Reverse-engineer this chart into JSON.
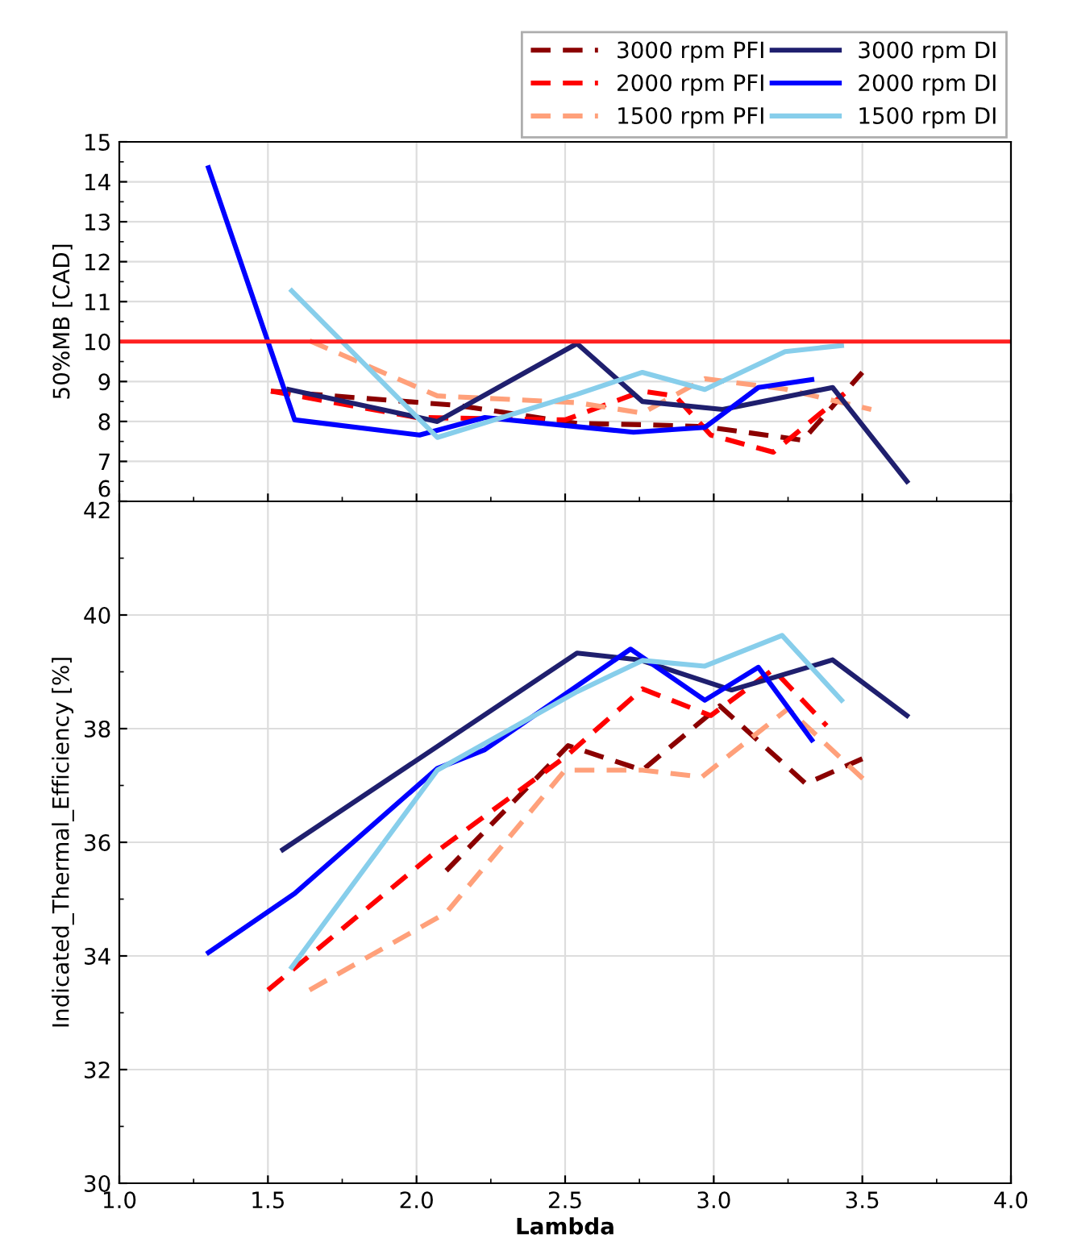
{
  "chart_data": [
    {
      "type": "line",
      "ylabel": "50%MB [CAD]",
      "xlim": [
        1.0,
        4.0
      ],
      "xticks": [
        1.0,
        1.5,
        2.0,
        2.5,
        3.0,
        3.5,
        4.0
      ],
      "ylim": [
        6,
        15
      ],
      "yticks": [
        6,
        7,
        8,
        9,
        10,
        11,
        12,
        13,
        14,
        15
      ],
      "tick_labels": "y",
      "grid": true,
      "legend": "top right",
      "line_style": "solid",
      "marker": "none",
      "ref_lines": [
        {
          "axis": "y",
          "value": 10,
          "color": "#ff2020"
        }
      ],
      "series": [
        {
          "name": "3000 rpm PFI",
          "color": "#8b0000",
          "line_style": "dashed",
          "x": [
            1.51,
            2.14,
            2.54,
            2.76,
            2.97,
            3.3,
            3.5
          ],
          "values": [
            8.76,
            8.4,
            7.95,
            7.92,
            7.87,
            7.53,
            9.23
          ]
        },
        {
          "name": "2000 rpm PFI",
          "color": "#ff0000",
          "line_style": "dashed",
          "x": [
            1.51,
            2.0,
            2.5,
            2.76,
            2.87,
            2.99,
            3.2,
            3.44
          ],
          "values": [
            8.76,
            8.1,
            8.04,
            8.76,
            8.64,
            7.66,
            7.23,
            8.7
          ]
        },
        {
          "name": "1500 rpm PFI",
          "color": "#ffa07a",
          "line_style": "dashed",
          "x": [
            1.64,
            2.07,
            2.54,
            2.76,
            2.97,
            3.24,
            3.53
          ],
          "values": [
            10.02,
            8.64,
            8.47,
            8.21,
            9.07,
            8.81,
            8.3
          ]
        },
        {
          "name": "3000 rpm DI",
          "color": "#1f1f6e",
          "x": [
            1.57,
            2.07,
            2.54,
            2.76,
            3.03,
            3.4,
            3.65
          ],
          "values": [
            8.8,
            8.0,
            9.95,
            8.5,
            8.3,
            8.85,
            6.5
          ]
        },
        {
          "name": "2000 rpm DI",
          "color": "#0000ff",
          "x": [
            1.3,
            1.59,
            2.01,
            2.23,
            2.5,
            2.73,
            2.97,
            3.15,
            3.33
          ],
          "values": [
            14.35,
            8.04,
            7.66,
            8.1,
            7.9,
            7.73,
            7.85,
            8.85,
            9.05
          ]
        },
        {
          "name": "1500 rpm DI",
          "color": "#87ceeb",
          "x": [
            1.58,
            2.07,
            2.54,
            2.76,
            2.97,
            3.24,
            3.43
          ],
          "values": [
            11.27,
            7.6,
            8.68,
            9.23,
            8.8,
            9.75,
            9.9
          ]
        }
      ]
    },
    {
      "type": "line",
      "xlabel": "Lambda",
      "ylabel": "Indicated_Thermal_Efficiency [%]",
      "xlim": [
        1.0,
        4.0
      ],
      "xticks": [
        {
          "value": 1,
          "label": "1.0"
        },
        1.5,
        {
          "value": 2,
          "label": "2.0"
        },
        2.5,
        {
          "value": 3,
          "label": "3.0"
        },
        3.5,
        {
          "value": 4,
          "label": "4.0"
        }
      ],
      "ylim": [
        30,
        42
      ],
      "yticks": [
        30,
        32,
        34,
        36,
        38,
        40,
        42
      ],
      "grid": true,
      "line_style": "solid",
      "marker": "none",
      "series": [
        {
          "color": "#8b0000",
          "line_style": "dashed",
          "x": [
            2.1,
            2.51,
            2.76,
            3.02,
            3.31,
            3.5
          ],
          "values": [
            35.5,
            37.7,
            37.27,
            38.4,
            37.03,
            37.47
          ]
        },
        {
          "color": "#ff0000",
          "line_style": "dashed",
          "x": [
            1.5,
            2.05,
            2.5,
            2.76,
            2.99,
            3.2,
            3.38
          ],
          "values": [
            33.4,
            35.77,
            37.5,
            38.7,
            38.23,
            39.04,
            38.05
          ]
        },
        {
          "color": "#ffa07a",
          "line_style": "dashed",
          "x": [
            1.64,
            2.1,
            2.5,
            2.76,
            2.96,
            3.25,
            3.52
          ],
          "values": [
            33.4,
            34.76,
            37.27,
            37.27,
            37.15,
            38.35,
            37.03
          ]
        },
        {
          "color": "#1f1f6e",
          "x": [
            1.55,
            2.54,
            2.75,
            3.06,
            3.4,
            3.65
          ],
          "values": [
            35.87,
            39.33,
            39.21,
            38.68,
            39.21,
            38.23
          ]
        },
        {
          "color": "#0000ff",
          "x": [
            1.3,
            1.59,
            2.07,
            2.23,
            2.72,
            2.97,
            3.15,
            3.33
          ],
          "values": [
            34.06,
            35.1,
            37.3,
            37.63,
            39.4,
            38.5,
            39.08,
            37.8
          ]
        },
        {
          "color": "#87ceeb",
          "x": [
            1.58,
            2.07,
            2.54,
            2.76,
            2.97,
            3.23,
            3.43
          ],
          "values": [
            33.8,
            37.27,
            38.65,
            39.2,
            39.1,
            39.64,
            38.5
          ]
        }
      ]
    }
  ]
}
